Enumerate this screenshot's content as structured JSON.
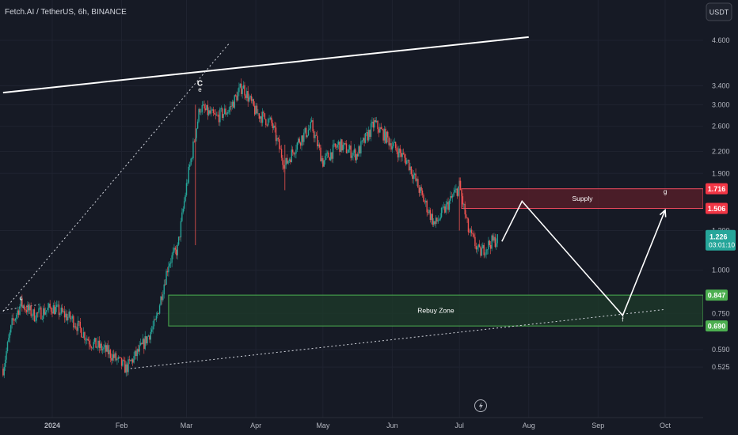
{
  "header": {
    "symbol_title": "Fetch.AI / TetherUS, 6h, BINANCE",
    "currency_button": "USDT"
  },
  "colors": {
    "background": "#161a25",
    "grid": "#1f2330",
    "axis_text": "#b2b5be",
    "up": "#26a69a",
    "down": "#ef5350",
    "supply_fill": "#5c1f2a",
    "supply_border": "#ef4a5e",
    "rebuy_fill": "#1d3b2a",
    "rebuy_border": "#4caf50",
    "current_price": "#26a69a"
  },
  "chart_data": {
    "type": "candlestick",
    "title": "Fetch.AI / TetherUS, 6h, BINANCE",
    "y_scale": "log",
    "y_range": [
      0.5,
      4.65
    ],
    "x_axis_labels": [
      "2024",
      "Feb",
      "Mar",
      "Apr",
      "May",
      "Jun",
      "Jul",
      "Aug",
      "Sep",
      "Oct"
    ],
    "y_axis_labels": [
      "4.600",
      "3.400",
      "3.000",
      "2.600",
      "2.200",
      "1.900",
      "1.300",
      "1.000",
      "0.750",
      "0.590",
      "0.525"
    ],
    "price_path": [
      {
        "date": "2023-12-10",
        "price": 0.52
      },
      {
        "date": "2023-12-14",
        "price": 0.7
      },
      {
        "date": "2023-12-18",
        "price": 0.8
      },
      {
        "date": "2023-12-24",
        "price": 0.74
      },
      {
        "date": "2024-01-01",
        "price": 0.78
      },
      {
        "date": "2024-01-10",
        "price": 0.72
      },
      {
        "date": "2024-01-18",
        "price": 0.62
      },
      {
        "date": "2024-01-26",
        "price": 0.58
      },
      {
        "date": "2024-02-03",
        "price": 0.52
      },
      {
        "date": "2024-02-10",
        "price": 0.6
      },
      {
        "date": "2024-02-16",
        "price": 0.7
      },
      {
        "date": "2024-02-22",
        "price": 1.05
      },
      {
        "date": "2024-02-26",
        "price": 1.15
      },
      {
        "date": "2024-03-01",
        "price": 1.75
      },
      {
        "date": "2024-03-07",
        "price": 2.95
      },
      {
        "date": "2024-03-14",
        "price": 2.75
      },
      {
        "date": "2024-03-20",
        "price": 2.9
      },
      {
        "date": "2024-03-26",
        "price": 3.4
      },
      {
        "date": "2024-04-01",
        "price": 2.85
      },
      {
        "date": "2024-04-08",
        "price": 2.65
      },
      {
        "date": "2024-04-14",
        "price": 2.0
      },
      {
        "date": "2024-04-20",
        "price": 2.35
      },
      {
        "date": "2024-04-26",
        "price": 2.6
      },
      {
        "date": "2024-05-01",
        "price": 2.05
      },
      {
        "date": "2024-05-08",
        "price": 2.3
      },
      {
        "date": "2024-05-16",
        "price": 2.15
      },
      {
        "date": "2024-05-24",
        "price": 2.65
      },
      {
        "date": "2024-06-01",
        "price": 2.3
      },
      {
        "date": "2024-06-08",
        "price": 2.05
      },
      {
        "date": "2024-06-14",
        "price": 1.65
      },
      {
        "date": "2024-06-20",
        "price": 1.35
      },
      {
        "date": "2024-06-26",
        "price": 1.55
      },
      {
        "date": "2024-07-01",
        "price": 1.75
      },
      {
        "date": "2024-07-05",
        "price": 1.3
      },
      {
        "date": "2024-07-10",
        "price": 1.12
      },
      {
        "date": "2024-07-15",
        "price": 1.2
      },
      {
        "date": "2024-07-18",
        "price": 1.226
      }
    ],
    "projection_path": [
      {
        "date": "2024-07-20",
        "price": 1.21
      },
      {
        "date": "2024-07-29",
        "price": 1.58
      },
      {
        "date": "2024-09-12",
        "price": 0.74
      },
      {
        "date": "2024-10-01",
        "price": 1.49
      }
    ],
    "zones": [
      {
        "label": "Supply",
        "from": 1.506,
        "to": 1.716,
        "start_date": "2024-07-02",
        "type": "supply"
      },
      {
        "label": "Rebuy Zone",
        "from": 0.69,
        "to": 0.847,
        "start_date": "2024-02-22",
        "type": "demand"
      }
    ],
    "trendlines": [
      {
        "points": [
          {
            "date": "2023-12-10",
            "price": 3.25
          },
          {
            "date": "2024-08-01",
            "price": 4.7
          }
        ],
        "style": "solid"
      },
      {
        "points": [
          {
            "date": "2023-12-10",
            "price": 0.76
          },
          {
            "date": "2024-03-20",
            "price": 4.5
          }
        ],
        "style": "dotted"
      },
      {
        "points": [
          {
            "date": "2024-02-05",
            "price": 0.52
          },
          {
            "date": "2024-10-01",
            "price": 0.77
          }
        ],
        "style": "dotted"
      },
      {
        "points": [
          {
            "date": "2023-12-10",
            "price": 0.765
          },
          {
            "date": "2023-12-26",
            "price": 0.795
          }
        ],
        "style": "dotted"
      }
    ],
    "wave_labels": [
      {
        "text": "c",
        "date": "2023-12-18",
        "price": 0.82
      },
      {
        "text": "C",
        "date": "2024-03-07",
        "price": 3.4
      },
      {
        "text": "e",
        "date": "2024-03-07",
        "price": 3.27
      },
      {
        "text": "f",
        "date": "2024-09-12",
        "price": 0.71
      },
      {
        "text": "g",
        "date": "2024-10-01",
        "price": 1.66
      }
    ],
    "price_tags": [
      {
        "label": "1.716",
        "value": 1.716,
        "type": "supply"
      },
      {
        "label": "1.506",
        "value": 1.506,
        "type": "supply"
      },
      {
        "label": "0.847",
        "value": 0.847,
        "type": "demand"
      },
      {
        "label": "0.690",
        "value": 0.69,
        "type": "demand"
      }
    ],
    "current_price": {
      "label": "1.226",
      "value": 1.226,
      "countdown": "03:01:10"
    },
    "grid": true
  }
}
